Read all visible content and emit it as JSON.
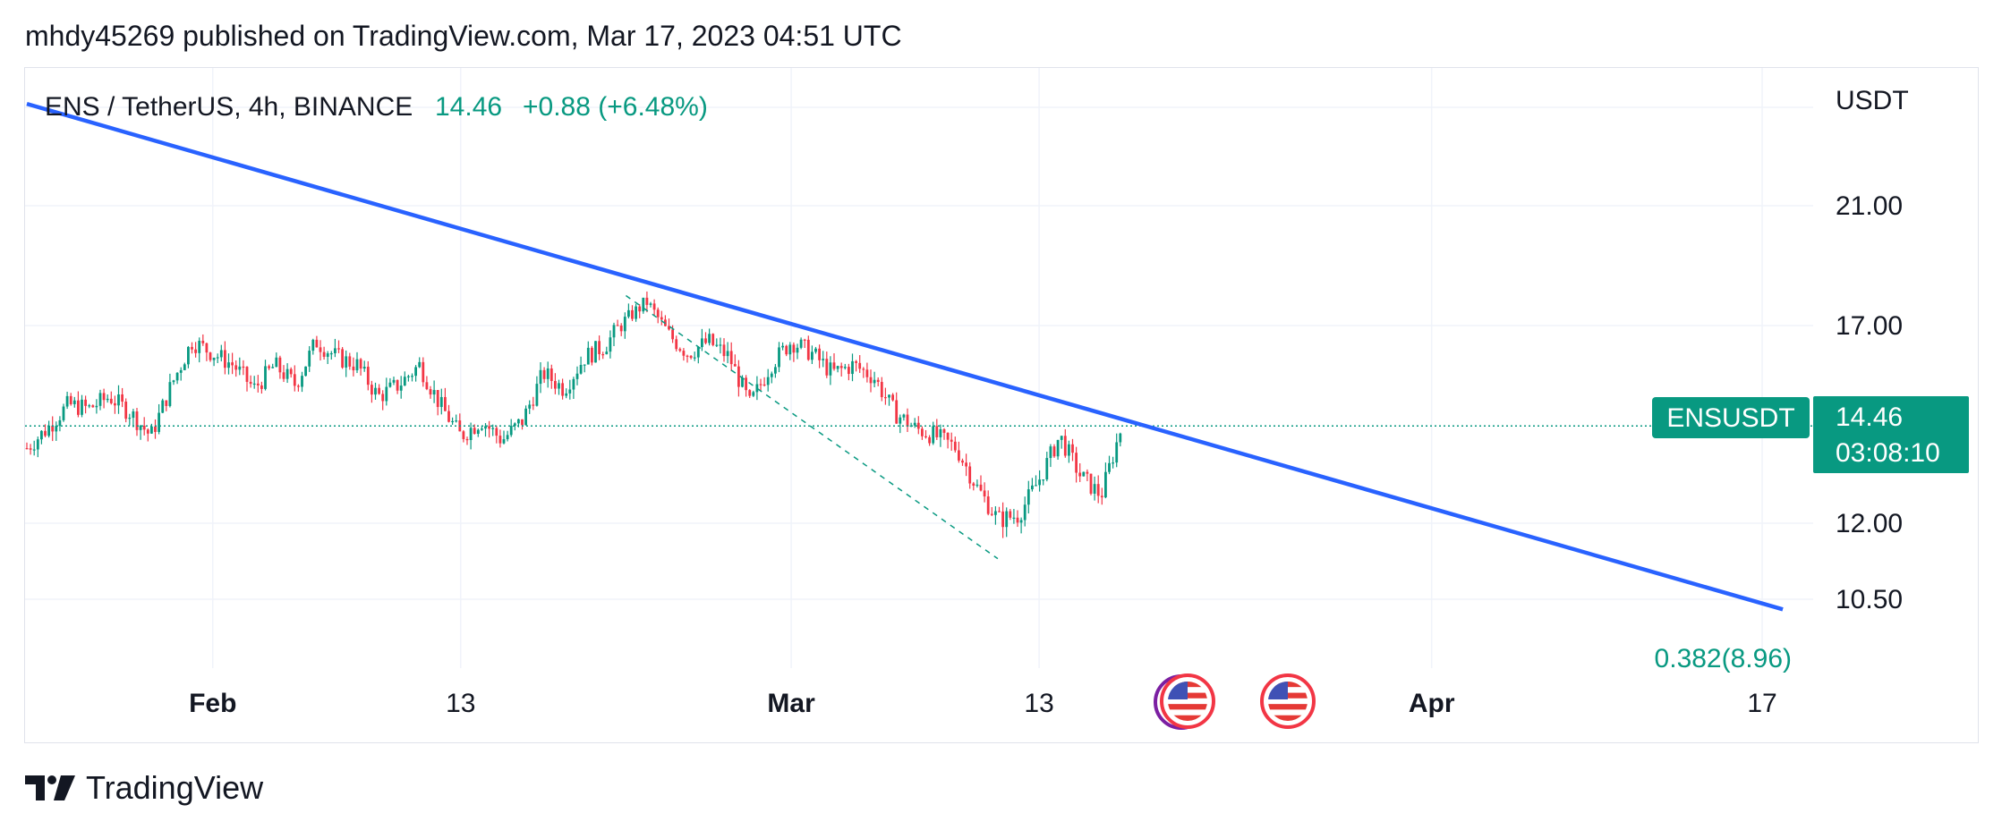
{
  "header": {
    "published_line": "mhdy45269 published on TradingView.com, Mar 17, 2023 04:51 UTC"
  },
  "legend": {
    "symbol": "ENS / TetherUS, 4h, BINANCE",
    "last": "14.46",
    "change": "+0.88 (+6.48%)"
  },
  "price_axis": {
    "currency": "USDT",
    "ticks": [
      "21.00",
      "17.00",
      "12.00",
      "10.50"
    ]
  },
  "time_axis": {
    "ticks": [
      {
        "label": "Feb",
        "bold": true
      },
      {
        "label": "13",
        "bold": false
      },
      {
        "label": "Mar",
        "bold": true
      },
      {
        "label": "13",
        "bold": false
      },
      {
        "label": "Apr",
        "bold": true
      },
      {
        "label": "17",
        "bold": false
      }
    ]
  },
  "price_label": {
    "ticker": "ENSUSDT",
    "price": "14.46",
    "countdown": "03:08:10"
  },
  "fib_label": "0.382(8.96)",
  "events": [
    {
      "icon": "us-flag-icon"
    },
    {
      "icon": "us-flag-icon"
    }
  ],
  "footer": {
    "brand": "TradingView"
  },
  "colors": {
    "up": "#089981",
    "down": "#f23645",
    "trendline": "#2962ff",
    "label_bg": "#089981"
  },
  "chart_data": {
    "type": "candlestick",
    "symbol": "ENS / TetherUS",
    "interval": "4h",
    "exchange": "BINANCE",
    "x_range": [
      "2023-01-23",
      "2023-04-17"
    ],
    "y_ticks": [
      21.0,
      17.0,
      12.0,
      10.5
    ],
    "last_price": 14.46,
    "close_path": [
      [
        "2023-01-23",
        13.9
      ],
      [
        "2023-01-24",
        14.4
      ],
      [
        "2023-01-25",
        15.0
      ],
      [
        "2023-01-26",
        14.9
      ],
      [
        "2023-01-27",
        15.2
      ],
      [
        "2023-01-28",
        14.8
      ],
      [
        "2023-01-29",
        14.2
      ],
      [
        "2023-01-30",
        15.5
      ],
      [
        "2023-01-31",
        16.6
      ],
      [
        "2023-02-01",
        16.3
      ],
      [
        "2023-02-02",
        16.0
      ],
      [
        "2023-02-03",
        15.4
      ],
      [
        "2023-02-04",
        16.0
      ],
      [
        "2023-02-05",
        15.5
      ],
      [
        "2023-02-06",
        16.6
      ],
      [
        "2023-02-07",
        16.2
      ],
      [
        "2023-02-08",
        16.0
      ],
      [
        "2023-02-09",
        15.2
      ],
      [
        "2023-02-10",
        15.5
      ],
      [
        "2023-02-11",
        16.0
      ],
      [
        "2023-02-12",
        15.0
      ],
      [
        "2023-02-13",
        14.2
      ],
      [
        "2023-02-14",
        14.6
      ],
      [
        "2023-02-15",
        14.1
      ],
      [
        "2023-02-16",
        14.6
      ],
      [
        "2023-02-17",
        15.8
      ],
      [
        "2023-02-18",
        15.4
      ],
      [
        "2023-02-19",
        16.2
      ],
      [
        "2023-02-20",
        16.5
      ],
      [
        "2023-02-21",
        17.2
      ],
      [
        "2023-02-22",
        17.8
      ],
      [
        "2023-02-23",
        16.8
      ],
      [
        "2023-02-24",
        16.3
      ],
      [
        "2023-02-25",
        16.6
      ],
      [
        "2023-02-26",
        16.2
      ],
      [
        "2023-02-27",
        15.0
      ],
      [
        "2023-02-28",
        16.0
      ],
      [
        "2023-03-01",
        16.6
      ],
      [
        "2023-03-02",
        16.3
      ],
      [
        "2023-03-03",
        15.8
      ],
      [
        "2023-03-04",
        16.0
      ],
      [
        "2023-03-05",
        15.7
      ],
      [
        "2023-03-06",
        14.8
      ],
      [
        "2023-03-07",
        14.4
      ],
      [
        "2023-03-08",
        14.2
      ],
      [
        "2023-03-09",
        13.9
      ],
      [
        "2023-03-10",
        12.9
      ],
      [
        "2023-03-11",
        12.1
      ],
      [
        "2023-03-12",
        12.2
      ],
      [
        "2023-03-13",
        13.1
      ],
      [
        "2023-03-14",
        14.2
      ],
      [
        "2023-03-15",
        13.2
      ],
      [
        "2023-03-16",
        12.7
      ],
      [
        "2023-03-17",
        14.46
      ]
    ],
    "trendline": {
      "from": [
        "2023-01-23",
        24.4
      ],
      "to": [
        "2023-04-18",
        10.3
      ]
    },
    "fib_retracement": {
      "from": [
        "2023-02-21",
        18.0
      ],
      "to": [
        "2023-03-11",
        11.3
      ],
      "level": "0.382",
      "price": 8.96
    }
  }
}
